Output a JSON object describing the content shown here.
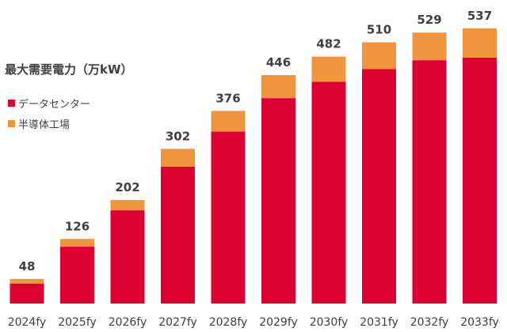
{
  "chart_data": {
    "type": "bar",
    "stacked": true,
    "title": "最大需要電力（万kW）",
    "categories": [
      "2024fy",
      "2025fy",
      "2026fy",
      "2027fy",
      "2028fy",
      "2029fy",
      "2030fy",
      "2031fy",
      "2032fy",
      "2033fy"
    ],
    "series": [
      {
        "name": "データセンター",
        "color": "#dd0033",
        "values": [
          39,
          111,
          182,
          267,
          336,
          401,
          433,
          458,
          475,
          480
        ]
      },
      {
        "name": "半導体工場",
        "color": "#f0953e",
        "values": [
          9,
          15,
          20,
          35,
          40,
          45,
          49,
          52,
          54,
          57
        ]
      }
    ],
    "totals": [
      48,
      126,
      202,
      302,
      376,
      446,
      482,
      510,
      529,
      537
    ],
    "ylim": [
      0,
      537
    ],
    "grid": false,
    "legend_position": "top-left"
  }
}
